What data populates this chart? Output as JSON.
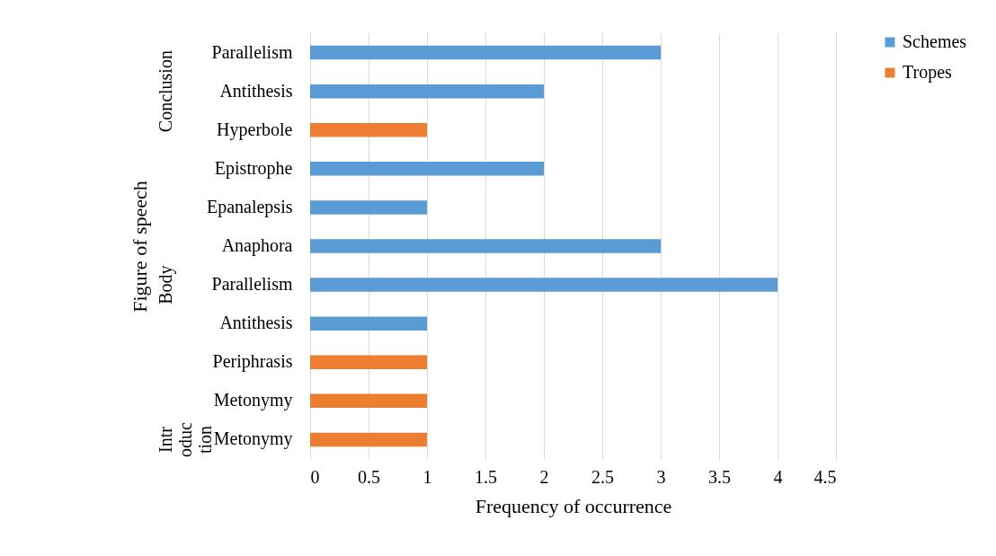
{
  "chart_data": {
    "type": "bar",
    "orientation": "horizontal",
    "xlabel": "Frequency of occurrence",
    "ylabel": "Figure of speech",
    "categories": [
      "Parallelism",
      "Antithesis",
      "Hyperbole",
      "Epistrophe",
      "Epanalepsis",
      "Anaphora",
      "Parallelism",
      "Antithesis",
      "Periphrasis",
      "Metonymy",
      "Metonymy"
    ],
    "series": [
      {
        "name": "Schemes",
        "color": "#5b9bd5",
        "values": [
          3,
          2,
          null,
          2,
          1,
          3,
          4,
          1,
          null,
          null,
          null
        ]
      },
      {
        "name": "Tropes",
        "color": "#ed7d31",
        "values": [
          null,
          null,
          1,
          null,
          null,
          null,
          null,
          null,
          1,
          1,
          1
        ]
      }
    ],
    "annotations": [
      "Conclusion",
      "Body",
      "Introduction"
    ],
    "xlim": [
      0,
      4.5
    ],
    "xticks": [
      0,
      0.5,
      1,
      1.5,
      2,
      2.5,
      3,
      3.5,
      4,
      4.5
    ],
    "grid": "x",
    "legend": "right"
  }
}
